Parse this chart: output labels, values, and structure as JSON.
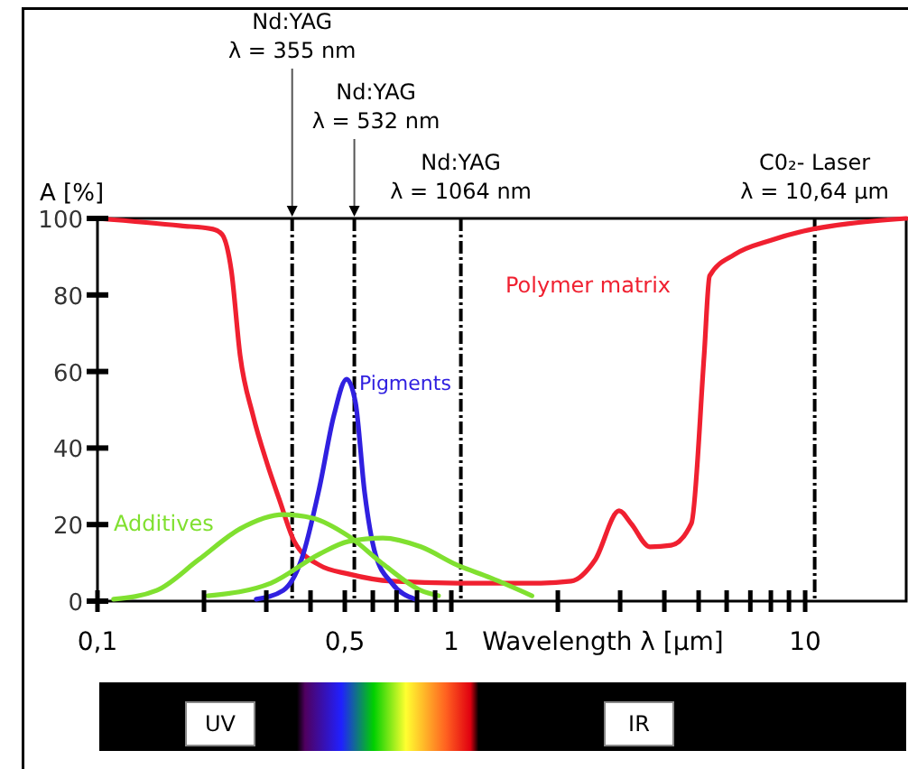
{
  "chart_data": {
    "type": "line",
    "xlabel": "Wavelength λ [µm]",
    "ylabel": "A [%]",
    "log": "x",
    "grid": false,
    "legend": false,
    "marker": "none",
    "xlim": [
      0.1,
      19.3
    ],
    "xticks": [
      {
        "value": 0.1,
        "label": "0,1"
      },
      {
        "value": 0.2,
        "label": null
      },
      {
        "value": 0.3,
        "label": null
      },
      {
        "value": 0.4,
        "label": null
      },
      {
        "value": 0.5,
        "label": "0,5"
      },
      {
        "value": 0.6,
        "label": null
      },
      {
        "value": 0.7,
        "label": null
      },
      {
        "value": 0.8,
        "label": null
      },
      {
        "value": 0.9,
        "label": null
      },
      1,
      {
        "value": 2,
        "label": null
      },
      {
        "value": 3,
        "label": null
      },
      {
        "value": 4,
        "label": null
      },
      {
        "value": 5,
        "label": null
      },
      {
        "value": 6,
        "label": null
      },
      {
        "value": 7,
        "label": null
      },
      {
        "value": 8,
        "label": null
      },
      {
        "value": 9,
        "label": null
      },
      10
    ],
    "ylim": [
      0,
      100
    ],
    "yticks": [
      0,
      20,
      40,
      60,
      80,
      100
    ],
    "series": [
      {
        "name": "Polymer matrix",
        "color": "#f02030",
        "x": [
          0.1,
          0.172,
          0.212,
          0.225,
          0.239,
          0.253,
          0.275,
          0.302,
          0.327,
          0.36,
          0.424,
          0.512,
          0.679,
          1.04,
          1.79,
          2.18,
          2.55,
          2.98,
          3.22,
          3.64,
          4.18,
          4.77,
          5.18,
          5.37,
          6.32,
          8.0,
          9.9,
          13.2,
          19.3
        ],
        "values": [
          100,
          98.1,
          97.2,
          95.8,
          86.3,
          64.2,
          48.6,
          35.8,
          26.4,
          15.6,
          9.4,
          7.1,
          5.2,
          4.7,
          4.7,
          5.2,
          10.8,
          23.6,
          20.3,
          14.2,
          14.6,
          20.3,
          64,
          85,
          90.6,
          94.3,
          96.7,
          98.6,
          100
        ]
      },
      {
        "name": "Pigments",
        "color": "#3020e0",
        "x": [
          0.281,
          0.335,
          0.377,
          0.424,
          0.466,
          0.506,
          0.536,
          0.569,
          0.61,
          0.679,
          0.79
        ],
        "values": [
          0.5,
          2.8,
          10.8,
          29.7,
          48.6,
          58,
          51.9,
          28.3,
          12.3,
          4.7,
          0.5
        ]
      },
      {
        "name": "Additives",
        "color": "#80e030",
        "x": [
          0.111,
          0.147,
          0.193,
          0.253,
          0.335,
          0.405,
          0.512,
          0.647,
          0.82,
          0.92
        ],
        "values": [
          0.5,
          2.8,
          10.8,
          18.9,
          22.6,
          21.7,
          17,
          9.4,
          2.8,
          1.4
        ]
      },
      {
        "color": "#80e030",
        "x": [
          0.205,
          0.309,
          0.424,
          0.512,
          0.64,
          0.82,
          1.04,
          1.29,
          1.69
        ],
        "values": [
          1.4,
          4.7,
          12.3,
          15.6,
          16.5,
          14.2,
          9.4,
          6.1,
          1.4
        ]
      }
    ],
    "ref_lines": [
      {
        "axis": "x",
        "value": 0.355,
        "label": "Nd:YAG\nλ = 355 nm",
        "color": "#000000",
        "line_style": "dashed"
      },
      {
        "axis": "x",
        "value": 0.532,
        "label": "Nd:YAG\nλ = 532 nm",
        "color": "#000000",
        "line_style": "dashed"
      },
      {
        "axis": "x",
        "value": 1.064,
        "label": "Nd:YAG\nλ = 1064 nm",
        "color": "#000000",
        "line_style": "dashed"
      },
      {
        "axis": "x",
        "value": 10.64,
        "label": "C0₂- Laser\nλ = 10,64 µm",
        "color": "#000000",
        "line_style": "dashed"
      }
    ],
    "annotations": [
      "UV",
      "IR"
    ]
  }
}
